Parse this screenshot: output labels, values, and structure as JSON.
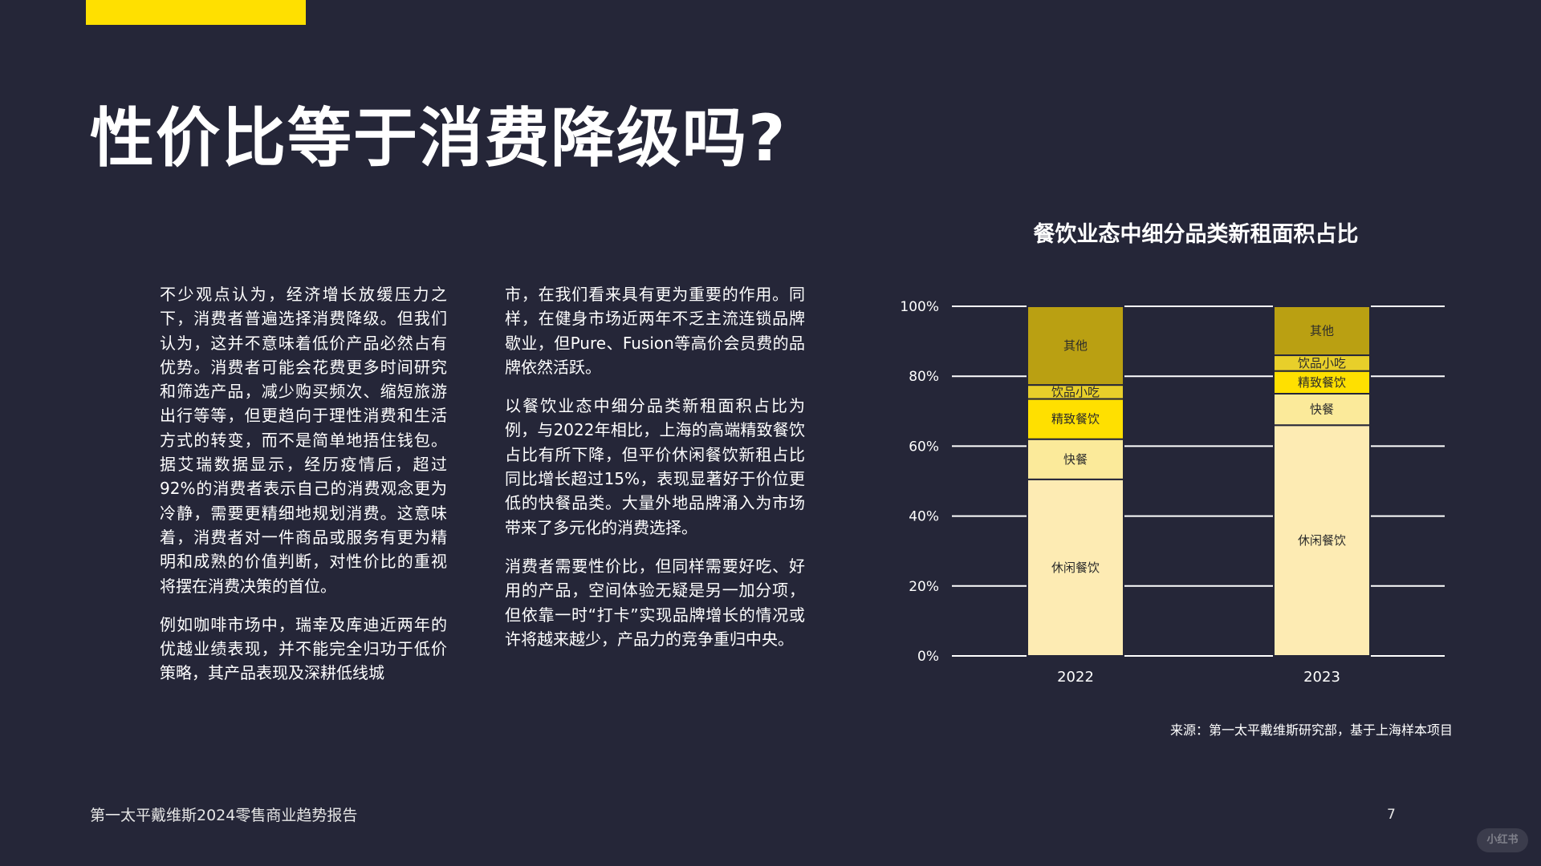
{
  "header": {
    "title": "性价比等于消费降级吗?"
  },
  "body": {
    "column1": [
      "不少观点认为，经济增长放缓压力之下，消费者普遍选择消费降级。但我们认为，这并不意味着低价产品必然占有优势。消费者可能会花费更多时间研究和筛选产品，减少购买频次、缩短旅游出行等等，但更趋向于理性消费和生活方式的转变，而不是简单地捂住钱包。据艾瑞数据显示，经历疫情后，超过92%的消费者表示自己的消费观念更为冷静，需要更精细地规划消费。这意味着，消费者对一件商品或服务有更为精明和成熟的价值判断，对性价比的重视将摆在消费决策的首位。",
      "例如咖啡市场中，瑞幸及库迪近两年的优越业绩表现，并不能完全归功于低价策略，其产品表现及深耕低线城"
    ],
    "column2": [
      "市，在我们看来具有更为重要的作用。同样，在健身市场近两年不乏主流连锁品牌歇业，但Pure、Fusion等高价会员费的品牌依然活跃。",
      "以餐饮业态中细分品类新租面积占比为例，与2022年相比，上海的高端精致餐饮占比有所下降，但平价休闲餐饮新租占比同比增长超过15%，表现显著好于价位更低的快餐品类。大量外地品牌涌入为市场带来了多元化的消费选择。",
      "消费者需要性价比，但同样需要好吃、好用的产品，空间体验无疑是另一加分项，但依靠一时“打卡”实现品牌增长的情况或许将越来越少，产品力的竞争重归中央。"
    ]
  },
  "chart_data": {
    "type": "bar",
    "stacked": true,
    "title": "餐饮业态中细分品类新租面积占比",
    "categories": [
      "2022",
      "2023"
    ],
    "series": [
      {
        "name": "休闲餐饮",
        "values": [
          50.5,
          66
        ],
        "color": "#FDEBB3"
      },
      {
        "name": "快餐",
        "values": [
          11.5,
          9
        ],
        "color": "#FBEA9A"
      },
      {
        "name": "精致餐饮",
        "values": [
          11.5,
          6.5
        ],
        "color": "#FFE000"
      },
      {
        "name": "饮品小吃",
        "values": [
          4,
          4.5
        ],
        "color": "#E8CF2A"
      },
      {
        "name": "其他",
        "values": [
          22.5,
          14
        ],
        "color": "#BAA012"
      }
    ],
    "yticks": [
      "0%",
      "20%",
      "40%",
      "60%",
      "80%",
      "100%"
    ],
    "ylim": [
      0,
      100
    ],
    "grid": true,
    "legend": "none",
    "colors": {
      "gridline": "#ffffff",
      "segment_label": "#2b2b2b",
      "axis_text": "#ffffff",
      "separator": "#252638"
    },
    "source": "来源：第一太平戴维斯研究部，基于上海样本项目"
  },
  "footer": {
    "report_name": "第一太平戴维斯2024零售商业趋势报告",
    "page_number": "7",
    "watermark": "小红书"
  },
  "colors": {
    "background": "#252638",
    "accent": "#FFE000"
  }
}
